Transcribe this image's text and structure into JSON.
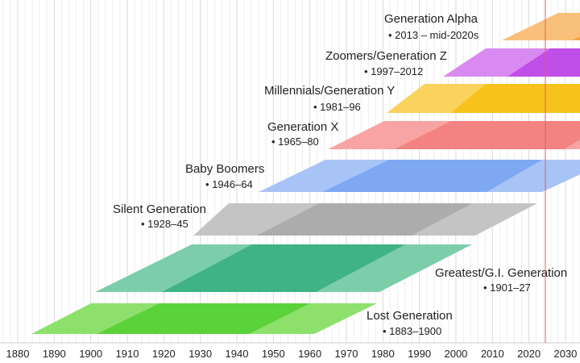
{
  "axis": {
    "ticks": [
      "1880",
      "1890",
      "1900",
      "1910",
      "1920",
      "1930",
      "1940",
      "1950",
      "1960",
      "1970",
      "1980",
      "1990",
      "2000",
      "2010",
      "2020",
      "2030"
    ]
  },
  "current_year_marker_color": "#e06060",
  "generations": [
    {
      "name": "Generation Alpha",
      "years": "• 2013 – mid-2020s",
      "light": "#f8c07a",
      "dark": "#f5a544"
    },
    {
      "name": "Zoomers/Generation Z",
      "years": "• 1997–2012",
      "light": "#d98af0",
      "dark": "#c04ee8"
    },
    {
      "name": "Millennials/Generation Y",
      "years": "• 1981–96",
      "light": "#fad25e",
      "dark": "#f7c21c"
    },
    {
      "name": "Generation X",
      "years": "• 1965–80",
      "light": "#f8a4a4",
      "dark": "#f38383"
    },
    {
      "name": "Baby Boomers",
      "years": "• 1946–64",
      "light": "#a8c4f6",
      "dark": "#7ea8f2"
    },
    {
      "name": "Silent Generation",
      "years": "• 1928–45",
      "light": "#c4c4c4",
      "dark": "#acacac"
    },
    {
      "name": "Greatest/G.I. Generation",
      "years": "• 1901–27",
      "light": "#7ccdaa",
      "dark": "#3fb286"
    },
    {
      "name": "Lost Generation",
      "years": "• 1883–1900",
      "light": "#8ee06c",
      "dark": "#5ad23a"
    }
  ]
}
